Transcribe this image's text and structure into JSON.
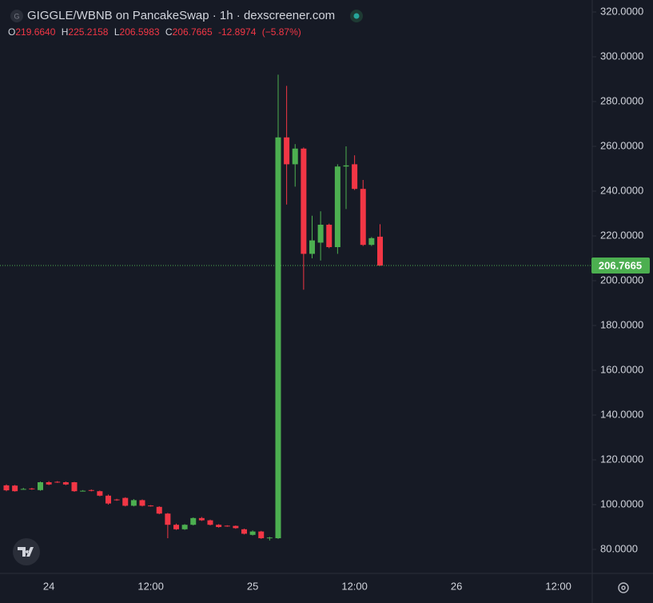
{
  "chart_data": {
    "type": "candlestick",
    "logo": "G",
    "title": "GIGGLE/WBNB on PancakeSwap · 1h · dexscreener.com",
    "ohlc_header": {
      "o_label": "O",
      "o": "219.6640",
      "h_label": "H",
      "h": "225.2158",
      "l_label": "L",
      "l": "206.5983",
      "c_label": "C",
      "c": "206.7665",
      "change": "-12.8974",
      "change_pct": "(−5.87%)"
    },
    "up_color": "#4caf50",
    "down_color": "#f23645",
    "open": [
      108.6,
      108.5,
      107,
      107.2,
      106.5,
      110,
      110.2,
      110,
      110,
      106.2,
      106.5,
      106,
      104,
      102.3,
      103,
      99.5,
      102,
      99.6,
      99,
      96,
      91,
      89,
      91,
      94,
      93,
      91,
      90.6,
      90.5,
      89,
      86.5,
      88,
      85,
      85,
      264,
      252,
      259,
      212,
      217,
      225,
      215,
      251,
      252,
      241,
      216,
      219.664
    ],
    "high": [
      109,
      108.8,
      107.5,
      107.5,
      110.3,
      110.5,
      110.5,
      110.3,
      110.2,
      106.5,
      106.8,
      106.3,
      104.5,
      102.6,
      103.3,
      102.5,
      102.3,
      99.8,
      99.3,
      96.3,
      91.5,
      91.3,
      94.3,
      94.5,
      93.3,
      91.3,
      90.8,
      90.7,
      89.3,
      88.5,
      88.3,
      85.6,
      292,
      287,
      261,
      259.5,
      229,
      231,
      225.5,
      252,
      260,
      256,
      245,
      219.5,
      225.2158
    ],
    "low": [
      106,
      105.8,
      106.7,
      106.6,
      106.2,
      108.7,
      109.7,
      108.7,
      105.7,
      105.9,
      105.9,
      103.7,
      100,
      101.7,
      99.2,
      99.2,
      99.2,
      99.1,
      95.7,
      85,
      88.7,
      88.7,
      90.7,
      92.7,
      90.7,
      89.7,
      90.1,
      89.2,
      86.7,
      86.2,
      84.7,
      84,
      84.7,
      234,
      242,
      196,
      210,
      209,
      214.5,
      212,
      232,
      240.5,
      215.5,
      215.5,
      206.5983
    ],
    "close": [
      106.4,
      106,
      107,
      106.9,
      110,
      109,
      110,
      109,
      106,
      106.2,
      106.2,
      104,
      100.5,
      102,
      99.5,
      102,
      99.5,
      99.4,
      96,
      91,
      89,
      91,
      94,
      93,
      91,
      90,
      90.4,
      89.5,
      87,
      88,
      85,
      85.3,
      264,
      252,
      259,
      212,
      218,
      225,
      215,
      251,
      251.5,
      241,
      216,
      219,
      206.7665
    ],
    "xticks": [
      "24",
      "12:00",
      "25",
      "12:00",
      "26",
      "12:00"
    ],
    "ylim": [
      80,
      320
    ],
    "yticks": [
      {
        "value": 80,
        "label": "80.0000"
      },
      {
        "value": 100,
        "label": "100.0000"
      },
      {
        "value": 120,
        "label": "120.0000"
      },
      {
        "value": 140,
        "label": "140.0000"
      },
      {
        "value": 160,
        "label": "160.0000"
      },
      {
        "value": 180,
        "label": "180.0000"
      },
      {
        "value": 200,
        "label": "200.0000"
      },
      {
        "value": 220,
        "label": "220.0000"
      },
      {
        "value": 240,
        "label": "240.0000"
      },
      {
        "value": 260,
        "label": "260.0000"
      },
      {
        "value": 280,
        "label": "280.0000"
      },
      {
        "value": 300,
        "label": "300.0000"
      },
      {
        "value": 320,
        "label": "320.0000"
      }
    ],
    "last_price": {
      "value": 206.7665,
      "label": "206.7665"
    }
  }
}
